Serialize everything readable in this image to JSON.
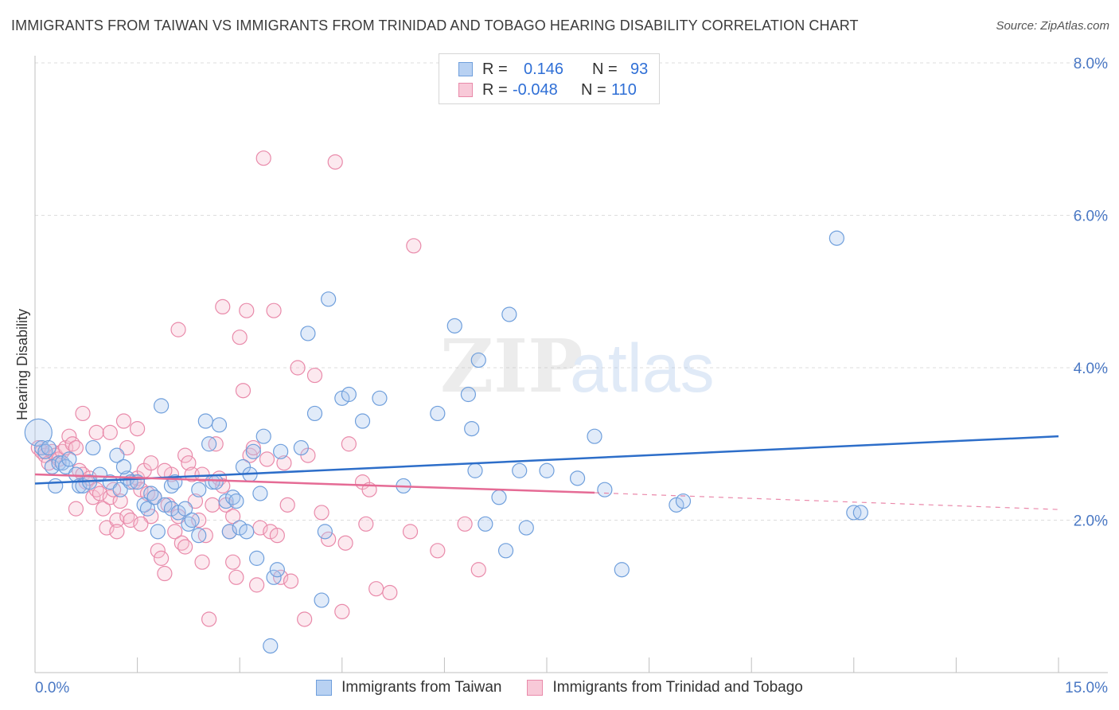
{
  "title": "IMMIGRANTS FROM TAIWAN VS IMMIGRANTS FROM TRINIDAD AND TOBAGO HEARING DISABILITY CORRELATION CHART",
  "source": "Source: ZipAtlas.com",
  "watermark": {
    "zip": "ZIP",
    "atlas": "atlas"
  },
  "colors": {
    "taiwan": "#6f9fdc",
    "taiwan_fill": "#a9c7ef",
    "taiwan_line": "#2d6ec9",
    "trinidad": "#e98aaa",
    "trinidad_fill": "#f5bfd1",
    "trinidad_line": "#e56b95",
    "tick": "#4a78c4",
    "grid": "#dddddd"
  },
  "legend": {
    "rows": [
      {
        "r_label": "R =",
        "r_value": "0.146",
        "n_label": "N =",
        "n_value": "93"
      },
      {
        "r_label": "R =",
        "r_value": "-0.048",
        "n_label": "N =",
        "n_value": "110"
      }
    ]
  },
  "bottom_legend": [
    "Immigrants from Taiwan",
    "Immigrants from Trinidad and Tobago"
  ],
  "chart_data": {
    "type": "scatter",
    "title": "IMMIGRANTS FROM TAIWAN VS IMMIGRANTS FROM TRINIDAD AND TOBAGO HEARING DISABILITY CORRELATION CHART",
    "ylabel": "Hearing Disability",
    "xlabel": "",
    "xlim": [
      0,
      15
    ],
    "ylim": [
      0,
      8.0
    ],
    "x_tick_labels": [
      "0.0%",
      "15.0%"
    ],
    "y_ticks": [
      2.0,
      4.0,
      6.0,
      8.0
    ],
    "y_tick_labels": [
      "2.0%",
      "4.0%",
      "6.0%",
      "8.0%"
    ],
    "grid": "horizontal dashed",
    "legend_placement": "top-center",
    "series": [
      {
        "name": "Immigrants from Taiwan",
        "R": 0.146,
        "N": 93,
        "trend": {
          "x": [
            0,
            15
          ],
          "y": [
            2.48,
            3.1
          ]
        },
        "points": [
          [
            0.05,
            3.15
          ],
          [
            0.1,
            2.95
          ],
          [
            0.15,
            2.9
          ],
          [
            0.2,
            2.95
          ],
          [
            0.25,
            2.7
          ],
          [
            0.3,
            2.45
          ],
          [
            0.35,
            2.75
          ],
          [
            0.4,
            2.75
          ],
          [
            0.45,
            2.7
          ],
          [
            0.5,
            2.8
          ],
          [
            0.6,
            2.6
          ],
          [
            0.65,
            2.45
          ],
          [
            0.7,
            2.45
          ],
          [
            0.8,
            2.5
          ],
          [
            0.85,
            2.95
          ],
          [
            0.95,
            2.6
          ],
          [
            1.1,
            2.5
          ],
          [
            1.2,
            2.85
          ],
          [
            1.25,
            2.4
          ],
          [
            1.35,
            2.55
          ],
          [
            1.4,
            2.5
          ],
          [
            1.5,
            2.5
          ],
          [
            1.6,
            2.2
          ],
          [
            1.65,
            2.15
          ],
          [
            1.7,
            2.35
          ],
          [
            1.75,
            2.3
          ],
          [
            1.8,
            1.85
          ],
          [
            1.85,
            3.5
          ],
          [
            1.9,
            2.2
          ],
          [
            2.0,
            2.15
          ],
          [
            2.0,
            2.45
          ],
          [
            2.05,
            2.5
          ],
          [
            2.1,
            2.1
          ],
          [
            2.2,
            2.15
          ],
          [
            2.25,
            1.95
          ],
          [
            2.3,
            2.0
          ],
          [
            2.4,
            2.4
          ],
          [
            2.4,
            1.8
          ],
          [
            2.5,
            3.3
          ],
          [
            2.55,
            3.0
          ],
          [
            2.6,
            2.5
          ],
          [
            2.65,
            2.5
          ],
          [
            2.7,
            3.25
          ],
          [
            2.8,
            2.25
          ],
          [
            2.85,
            1.85
          ],
          [
            2.9,
            2.3
          ],
          [
            2.95,
            2.25
          ],
          [
            3.0,
            1.9
          ],
          [
            3.05,
            2.7
          ],
          [
            3.1,
            1.85
          ],
          [
            3.15,
            2.6
          ],
          [
            3.2,
            2.9
          ],
          [
            3.25,
            1.5
          ],
          [
            3.3,
            2.35
          ],
          [
            3.35,
            3.1
          ],
          [
            3.45,
            0.35
          ],
          [
            3.5,
            1.25
          ],
          [
            3.55,
            1.35
          ],
          [
            3.6,
            2.9
          ],
          [
            3.9,
            2.95
          ],
          [
            4.0,
            4.45
          ],
          [
            4.1,
            3.4
          ],
          [
            4.2,
            0.95
          ],
          [
            4.25,
            1.85
          ],
          [
            4.3,
            4.9
          ],
          [
            4.5,
            3.6
          ],
          [
            4.6,
            3.65
          ],
          [
            4.8,
            3.3
          ],
          [
            5.05,
            3.6
          ],
          [
            5.4,
            2.45
          ],
          [
            5.9,
            3.4
          ],
          [
            6.15,
            4.55
          ],
          [
            6.35,
            3.65
          ],
          [
            6.4,
            3.2
          ],
          [
            6.45,
            2.65
          ],
          [
            6.5,
            4.1
          ],
          [
            6.6,
            1.95
          ],
          [
            6.8,
            2.3
          ],
          [
            6.9,
            1.6
          ],
          [
            6.95,
            4.7
          ],
          [
            7.1,
            2.65
          ],
          [
            7.2,
            1.9
          ],
          [
            7.5,
            2.65
          ],
          [
            7.95,
            2.55
          ],
          [
            8.2,
            3.1
          ],
          [
            8.35,
            2.4
          ],
          [
            8.6,
            1.35
          ],
          [
            9.4,
            2.2
          ],
          [
            9.5,
            2.25
          ],
          [
            11.75,
            5.7
          ],
          [
            12.0,
            2.1
          ],
          [
            12.1,
            2.1
          ],
          [
            1.3,
            2.7
          ]
        ]
      },
      {
        "name": "Immigrants from Trinidad and Tobago",
        "R": -0.048,
        "N": 110,
        "trend": {
          "x": [
            0,
            8.2
          ],
          "y": [
            2.6,
            2.36
          ]
        },
        "trend_extension": {
          "x": [
            8.2,
            15
          ],
          "y": [
            2.36,
            2.14
          ]
        },
        "points": [
          [
            0.05,
            2.95
          ],
          [
            0.1,
            2.9
          ],
          [
            0.15,
            2.85
          ],
          [
            0.2,
            2.75
          ],
          [
            0.25,
            2.9
          ],
          [
            0.3,
            2.85
          ],
          [
            0.35,
            2.8
          ],
          [
            0.4,
            2.9
          ],
          [
            0.45,
            2.95
          ],
          [
            0.5,
            3.1
          ],
          [
            0.55,
            3.0
          ],
          [
            0.6,
            2.95
          ],
          [
            0.65,
            2.65
          ],
          [
            0.7,
            2.6
          ],
          [
            0.75,
            2.5
          ],
          [
            0.8,
            2.55
          ],
          [
            0.85,
            2.3
          ],
          [
            0.9,
            2.4
          ],
          [
            0.95,
            2.35
          ],
          [
            1.0,
            2.15
          ],
          [
            1.05,
            1.9
          ],
          [
            1.1,
            2.3
          ],
          [
            1.15,
            2.4
          ],
          [
            1.2,
            2.0
          ],
          [
            1.25,
            2.25
          ],
          [
            1.3,
            3.3
          ],
          [
            1.35,
            2.05
          ],
          [
            1.4,
            2.0
          ],
          [
            1.45,
            2.5
          ],
          [
            1.5,
            2.55
          ],
          [
            1.55,
            2.4
          ],
          [
            1.6,
            2.65
          ],
          [
            1.65,
            2.35
          ],
          [
            1.7,
            2.05
          ],
          [
            1.75,
            2.3
          ],
          [
            1.8,
            1.6
          ],
          [
            1.85,
            1.5
          ],
          [
            1.9,
            1.3
          ],
          [
            1.95,
            2.2
          ],
          [
            2.0,
            2.6
          ],
          [
            2.05,
            1.85
          ],
          [
            2.1,
            2.05
          ],
          [
            2.15,
            1.7
          ],
          [
            2.2,
            2.85
          ],
          [
            2.25,
            2.75
          ],
          [
            2.3,
            2.6
          ],
          [
            2.35,
            2.25
          ],
          [
            2.4,
            2.0
          ],
          [
            2.45,
            1.45
          ],
          [
            2.5,
            1.8
          ],
          [
            2.55,
            0.7
          ],
          [
            2.6,
            2.2
          ],
          [
            2.65,
            3.0
          ],
          [
            2.7,
            2.55
          ],
          [
            2.75,
            2.45
          ],
          [
            2.8,
            2.2
          ],
          [
            2.85,
            1.85
          ],
          [
            2.9,
            1.45
          ],
          [
            2.95,
            1.25
          ],
          [
            3.0,
            4.4
          ],
          [
            3.05,
            3.7
          ],
          [
            3.1,
            4.75
          ],
          [
            3.15,
            2.85
          ],
          [
            3.2,
            2.95
          ],
          [
            3.25,
            1.15
          ],
          [
            3.3,
            1.9
          ],
          [
            3.35,
            6.75
          ],
          [
            3.45,
            1.85
          ],
          [
            3.5,
            4.75
          ],
          [
            3.55,
            1.8
          ],
          [
            3.6,
            1.25
          ],
          [
            3.65,
            2.75
          ],
          [
            3.7,
            2.2
          ],
          [
            3.75,
            1.2
          ],
          [
            3.85,
            4.0
          ],
          [
            3.95,
            0.7
          ],
          [
            4.0,
            2.85
          ],
          [
            4.1,
            3.9
          ],
          [
            4.2,
            2.1
          ],
          [
            4.3,
            1.75
          ],
          [
            4.4,
            6.7
          ],
          [
            4.5,
            0.8
          ],
          [
            4.55,
            1.7
          ],
          [
            4.6,
            3.0
          ],
          [
            4.8,
            2.5
          ],
          [
            4.85,
            1.95
          ],
          [
            5.0,
            1.1
          ],
          [
            5.2,
            1.05
          ],
          [
            5.5,
            1.85
          ],
          [
            5.55,
            5.6
          ],
          [
            5.9,
            1.6
          ],
          [
            6.3,
            1.95
          ],
          [
            6.5,
            1.35
          ],
          [
            0.7,
            3.4
          ],
          [
            0.9,
            3.15
          ],
          [
            1.1,
            3.15
          ],
          [
            1.5,
            3.2
          ],
          [
            1.7,
            2.75
          ],
          [
            2.1,
            4.5
          ],
          [
            2.45,
            2.6
          ],
          [
            2.75,
            4.8
          ],
          [
            3.4,
            2.8
          ],
          [
            1.9,
            2.65
          ],
          [
            1.35,
            2.95
          ],
          [
            0.6,
            2.15
          ],
          [
            1.55,
            1.95
          ],
          [
            2.2,
            1.65
          ],
          [
            1.2,
            1.85
          ],
          [
            2.9,
            2.05
          ],
          [
            4.9,
            2.4
          ]
        ]
      }
    ]
  }
}
